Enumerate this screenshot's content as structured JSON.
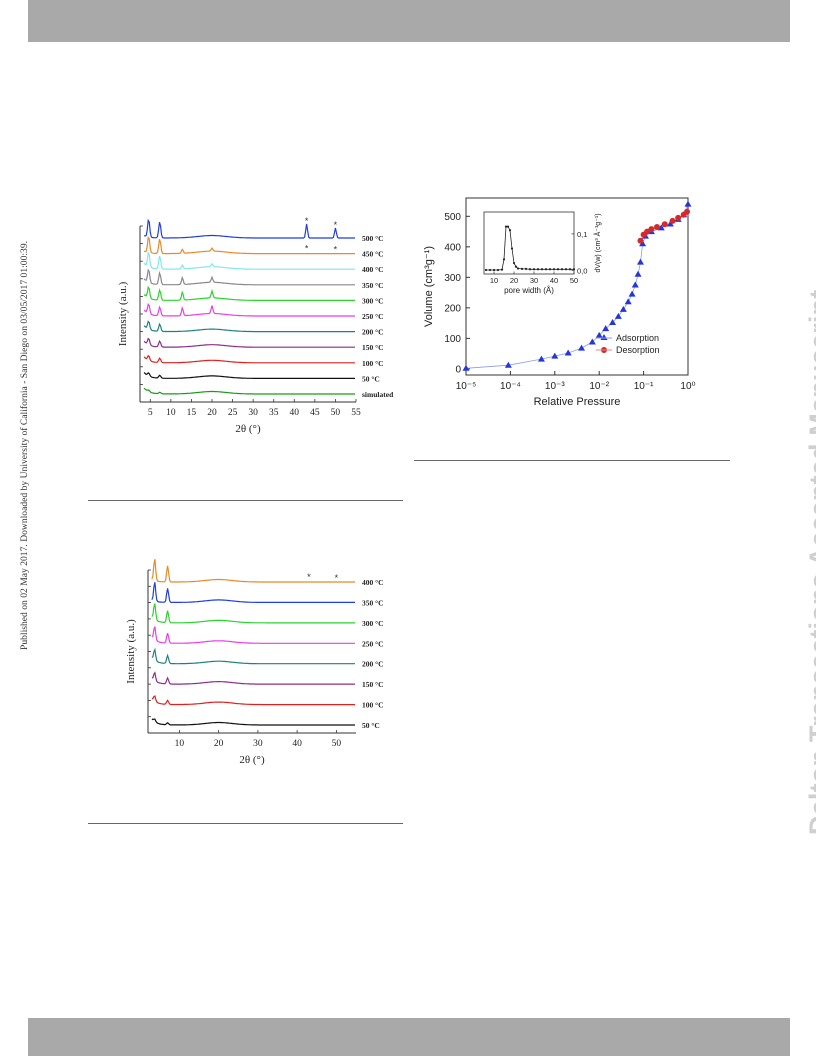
{
  "header": {
    "band_color": "#a9a9a9"
  },
  "footer": {
    "band_color": "#a9a9a9"
  },
  "side_text": {
    "published": "Published on 02 May 2017. Downloaded by University of California - San Diego on 03/05/2017 01:00:39.",
    "watermark": "Dalton Transactions Accepted Manuscript"
  },
  "figure1": {
    "ylabel": "Intensity (a.u.)",
    "xlabel": "2θ (°)",
    "xticks": [
      "5",
      "10",
      "15",
      "20",
      "25",
      "30",
      "35",
      "40",
      "45",
      "50",
      "55"
    ],
    "star": "*",
    "curve_labels": [
      "500 °C",
      "450 °C",
      "400 °C",
      "350 °C",
      "300 °C",
      "250 °C",
      "200 °C",
      "150 °C",
      "100 °C",
      "50 °C",
      "simulated"
    ],
    "colors": [
      "#1f3fdc",
      "#e88a28",
      "#7fe8f0",
      "#888888",
      "#2ad42a",
      "#e83ee8",
      "#1f8080",
      "#8a2f8a",
      "#e02020",
      "#111111",
      "#1a9a1a"
    ]
  },
  "figure2": {
    "ylabel": "Intensity (a.u.)",
    "xlabel": "2θ (°)",
    "xticks": [
      "10",
      "20",
      "30",
      "40",
      "50"
    ],
    "star": "*",
    "curve_labels": [
      "400 °C",
      "350 °C",
      "300 °C",
      "250 °C",
      "200 °C",
      "150 °C",
      "100 °C",
      "50 °C"
    ],
    "colors": [
      "#e88a28",
      "#1f3fdc",
      "#2ad42a",
      "#e83ee8",
      "#1f8080",
      "#8a2f8a",
      "#e02020",
      "#111111"
    ]
  },
  "figure3": {
    "ylabel": "Volume (cm³g⁻¹)",
    "xlabel": "Relative Pressure",
    "yticks": [
      "0",
      "100",
      "200",
      "300",
      "400",
      "500"
    ],
    "xticks": [
      "10⁻⁵",
      "10⁻⁴",
      "10⁻³",
      "10⁻²",
      "10⁻¹",
      "10⁰"
    ],
    "legend": [
      "Adsorption",
      "Desorption"
    ],
    "inset": {
      "xlabel": "pore width (Å)",
      "ylabel": "dV(w) (cm³ Å⁻¹g⁻¹)",
      "xticks": [
        "10",
        "20",
        "30",
        "40",
        "50"
      ],
      "yticks": [
        "0,0",
        "0,1"
      ]
    },
    "chart_data": {
      "type": "scatter",
      "xlabel": "Relative Pressure",
      "ylabel": "Volume (cm³g⁻¹)",
      "xscale": "log",
      "xlim": [
        1e-05,
        1
      ],
      "ylim": [
        -20,
        560
      ],
      "series": [
        {
          "name": "Adsorption",
          "color": "#2436d8",
          "marker": "triangle",
          "x": [
            1e-05,
            9e-05,
            0.0005,
            0.001,
            0.002,
            0.004,
            0.007,
            0.01,
            0.014,
            0.02,
            0.027,
            0.035,
            0.045,
            0.055,
            0.065,
            0.075,
            0.085,
            0.095,
            0.11,
            0.15,
            0.25,
            0.4,
            0.6,
            0.8,
            1.0
          ],
          "y": [
            2,
            12,
            32,
            42,
            52,
            68,
            88,
            110,
            132,
            152,
            172,
            195,
            220,
            245,
            275,
            310,
            350,
            410,
            435,
            450,
            462,
            475,
            490,
            505,
            540
          ]
        },
        {
          "name": "Desorption",
          "color": "#d42a2a",
          "marker": "circle",
          "x": [
            0.085,
            0.1,
            0.12,
            0.15,
            0.2,
            0.3,
            0.45,
            0.6,
            0.8,
            0.95
          ],
          "y": [
            420,
            440,
            450,
            458,
            465,
            474,
            485,
            495,
            505,
            515
          ]
        }
      ],
      "inset": {
        "type": "line",
        "xlabel": "pore width (Å)",
        "xlim": [
          5,
          50
        ],
        "ylim": [
          -0.01,
          0.16
        ],
        "x": [
          6,
          8,
          10,
          12,
          14,
          15,
          16,
          17,
          18,
          19,
          20,
          21,
          22,
          24,
          26,
          28,
          30,
          32,
          34,
          36,
          38,
          40,
          42,
          44,
          46,
          48,
          50
        ],
        "y": [
          0.001,
          0.001,
          0.001,
          0.001,
          0.002,
          0.03,
          0.12,
          0.12,
          0.11,
          0.06,
          0.02,
          0.01,
          0.005,
          0.004,
          0.004,
          0.003,
          0.003,
          0.003,
          0.003,
          0.003,
          0.003,
          0.003,
          0.003,
          0.003,
          0.003,
          0.003,
          0.003
        ]
      }
    }
  }
}
